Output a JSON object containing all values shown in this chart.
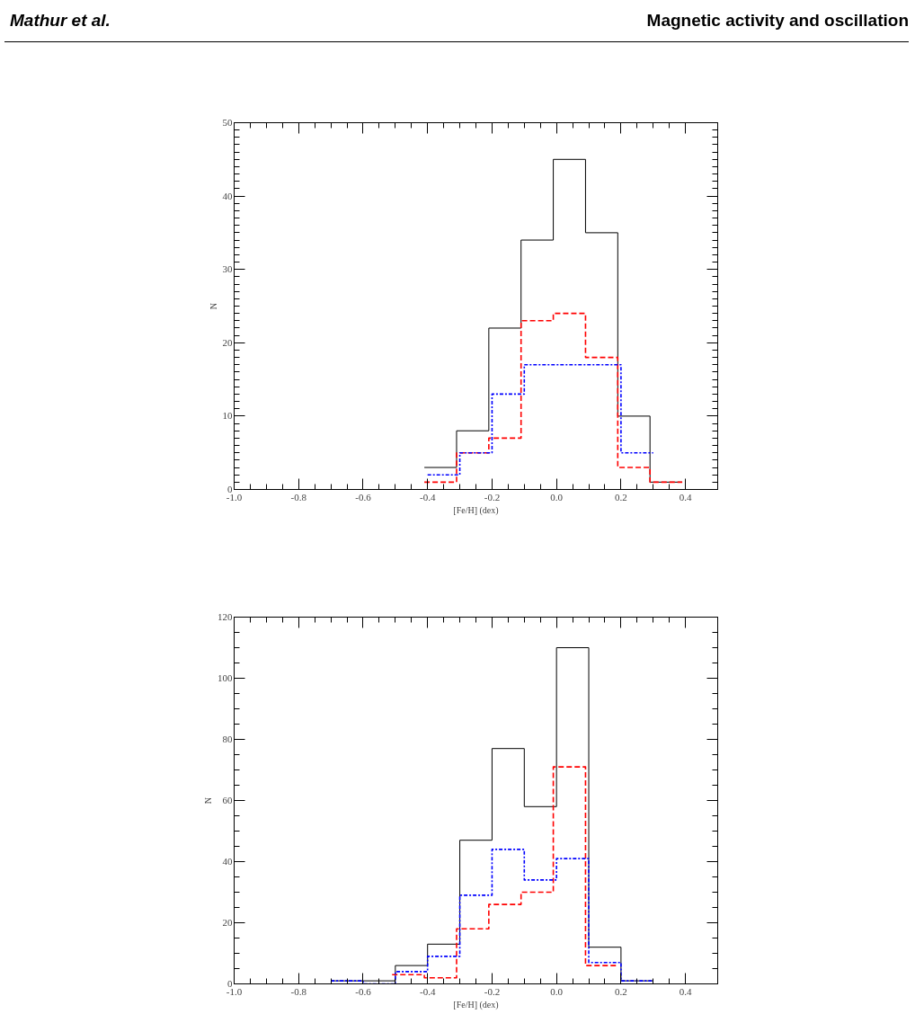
{
  "chart_data": [
    {
      "type": "step",
      "annotations": [
        "Mathur et al.",
        "Magnetic activity and oscillation"
      ],
      "xlabel": "[Fe/H] (dex)",
      "ylabel": "N",
      "xlim": [
        -1.0,
        0.5
      ],
      "ylim": [
        0,
        50
      ],
      "xticks": [
        {
          "value": -1.0,
          "label": "-1.0"
        },
        {
          "value": -0.8,
          "label": "-0.8"
        },
        {
          "value": -0.6,
          "label": "-0.6"
        },
        {
          "value": -0.4,
          "label": "-0.4"
        },
        {
          "value": -0.2,
          "label": "-0.2"
        },
        {
          "value": 0.0,
          "label": "0.0"
        },
        {
          "value": 0.2,
          "label": "0.2"
        },
        {
          "value": 0.4,
          "label": "0.4"
        }
      ],
      "yticks": [
        0,
        10,
        20,
        30,
        40,
        50
      ],
      "grid": false,
      "series": [
        {
          "color": "#000000",
          "line_style": "solid",
          "x": [
            -0.41,
            -0.31,
            -0.21,
            -0.11,
            -0.01,
            0.09,
            0.19,
            0.29,
            0.39
          ],
          "values": [
            3,
            8,
            22,
            34,
            45,
            35,
            10,
            1,
            1
          ]
        },
        {
          "color": "#ff0000",
          "line_style": "dashed",
          "x": [
            -0.41,
            -0.31,
            -0.21,
            -0.11,
            -0.01,
            0.09,
            0.19,
            0.29,
            0.39
          ],
          "values": [
            1,
            5,
            7,
            23,
            24,
            18,
            3,
            1,
            1
          ]
        },
        {
          "color": "#0000ff",
          "line_style": "dashdot",
          "x": [
            -0.4,
            -0.3,
            -0.2,
            -0.1,
            0.0,
            0.1,
            0.2,
            0.3
          ],
          "values": [
            2,
            5,
            13,
            17,
            17,
            17,
            5,
            5
          ]
        }
      ]
    },
    {
      "type": "step",
      "xlabel": "[Fe/H] (dex)",
      "ylabel": "N",
      "xlim": [
        -1.0,
        0.5
      ],
      "ylim": [
        0,
        120
      ],
      "xticks": [
        {
          "value": -1.0,
          "label": "-1.0"
        },
        {
          "value": -0.8,
          "label": "-0.8"
        },
        {
          "value": -0.6,
          "label": "-0.6"
        },
        {
          "value": -0.4,
          "label": "-0.4"
        },
        {
          "value": -0.2,
          "label": "-0.2"
        },
        {
          "value": 0.0,
          "label": "0.0"
        },
        {
          "value": 0.2,
          "label": "0.2"
        },
        {
          "value": 0.4,
          "label": "0.4"
        }
      ],
      "yticks": [
        0,
        20,
        40,
        60,
        80,
        100,
        120
      ],
      "grid": false,
      "series": [
        {
          "color": "#000000",
          "line_style": "solid",
          "x": [
            -0.7,
            -0.6,
            -0.5,
            -0.4,
            -0.3,
            -0.2,
            -0.1,
            0.0,
            0.1,
            0.2,
            0.3
          ],
          "values": [
            1,
            1,
            6,
            13,
            47,
            77,
            58,
            110,
            12,
            1,
            1
          ]
        },
        {
          "color": "#ff0000",
          "line_style": "dashed",
          "x": [
            -0.51,
            -0.41,
            -0.31,
            -0.21,
            -0.11,
            -0.01,
            0.09,
            0.19
          ],
          "values": [
            3,
            2,
            18,
            26,
            30,
            71,
            6,
            6
          ]
        },
        {
          "color": "#0000ff",
          "line_style": "dashdot",
          "x": [
            -0.7,
            -0.6,
            -0.5,
            -0.4,
            -0.3,
            -0.2,
            -0.1,
            0.0,
            0.1,
            0.2,
            0.3
          ],
          "values": [
            1,
            0,
            4,
            9,
            29,
            44,
            34,
            41,
            7,
            1,
            1
          ]
        }
      ]
    }
  ]
}
